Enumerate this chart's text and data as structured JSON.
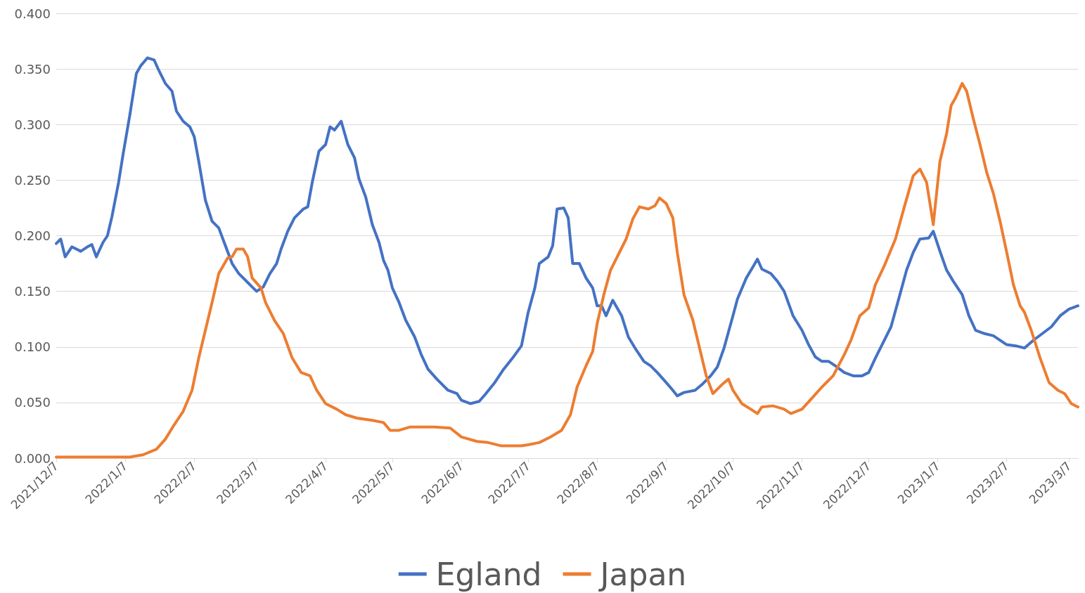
{
  "chart_data": {
    "type": "line",
    "xlim": [
      "2021-12-07",
      "2023-03-11"
    ],
    "ylim": [
      0,
      0.4
    ],
    "xticks": [
      {
        "value": "2021-12-07",
        "label": "2021/12/7"
      },
      {
        "value": "2022-01-07",
        "label": "2022/1/7"
      },
      {
        "value": "2022-02-07",
        "label": "2022/2/7"
      },
      {
        "value": "2022-03-07",
        "label": "2022/3/7"
      },
      {
        "value": "2022-04-07",
        "label": "2022/4/7"
      },
      {
        "value": "2022-05-07",
        "label": "2022/5/7"
      },
      {
        "value": "2022-06-07",
        "label": "2022/6/7"
      },
      {
        "value": "2022-07-07",
        "label": "2022/7/7"
      },
      {
        "value": "2022-08-07",
        "label": "2022/8/7"
      },
      {
        "value": "2022-09-07",
        "label": "2022/9/7"
      },
      {
        "value": "2022-10-07",
        "label": "2022/10/7"
      },
      {
        "value": "2022-11-07",
        "label": "2022/11/7"
      },
      {
        "value": "2022-12-07",
        "label": "2022/12/7"
      },
      {
        "value": "2023-01-07",
        "label": "2023/1/7"
      },
      {
        "value": "2023-02-07",
        "label": "2023/2/7"
      },
      {
        "value": "2023-03-07",
        "label": "2023/3/7"
      }
    ],
    "yticks": [
      {
        "value": 0,
        "label": "0.000"
      },
      {
        "value": 0.05,
        "label": "0.050"
      },
      {
        "value": 0.1,
        "label": "0.100"
      },
      {
        "value": 0.15,
        "label": "0.150"
      },
      {
        "value": 0.2,
        "label": "0.200"
      },
      {
        "value": 0.25,
        "label": "0.250"
      },
      {
        "value": 0.3,
        "label": "0.300"
      },
      {
        "value": 0.35,
        "label": "0.350"
      },
      {
        "value": 0.4,
        "label": "0.400"
      }
    ],
    "grid": "y",
    "legend": "bottom",
    "marker": "none",
    "line_style": "solid",
    "series": [
      {
        "name": "Egland",
        "color": "#4472c4",
        "x": [
          "2021-12-07",
          "2021-12-09",
          "2021-12-11",
          "2021-12-14",
          "2021-12-18",
          "2021-12-21",
          "2021-12-23",
          "2021-12-25",
          "2021-12-28",
          "2021-12-30",
          "2022-01-01",
          "2022-01-04",
          "2022-01-06",
          "2022-01-09",
          "2022-01-12",
          "2022-01-14",
          "2022-01-17",
          "2022-01-20",
          "2022-01-22",
          "2022-01-25",
          "2022-01-28",
          "2022-01-30",
          "2022-02-02",
          "2022-02-05",
          "2022-02-07",
          "2022-02-09",
          "2022-02-12",
          "2022-02-15",
          "2022-02-18",
          "2022-02-21",
          "2022-02-24",
          "2022-02-27",
          "2022-03-03",
          "2022-03-05",
          "2022-03-07",
          "2022-03-10",
          "2022-03-13",
          "2022-03-16",
          "2022-03-18",
          "2022-03-21",
          "2022-03-24",
          "2022-03-28",
          "2022-03-30",
          "2022-04-01",
          "2022-04-04",
          "2022-04-07",
          "2022-04-09",
          "2022-04-11",
          "2022-04-14",
          "2022-04-17",
          "2022-04-20",
          "2022-04-22",
          "2022-04-25",
          "2022-04-28",
          "2022-05-01",
          "2022-05-03",
          "2022-05-05",
          "2022-05-07",
          "2022-05-10",
          "2022-05-13",
          "2022-05-17",
          "2022-05-20",
          "2022-05-23",
          "2022-05-27",
          "2022-06-01",
          "2022-06-05",
          "2022-06-07",
          "2022-06-11",
          "2022-06-15",
          "2022-06-18",
          "2022-06-22",
          "2022-06-26",
          "2022-06-30",
          "2022-07-04",
          "2022-07-07",
          "2022-07-10",
          "2022-07-12",
          "2022-07-16",
          "2022-07-18",
          "2022-07-20",
          "2022-07-23",
          "2022-07-25",
          "2022-07-27",
          "2022-07-30",
          "2022-08-02",
          "2022-08-05",
          "2022-08-07",
          "2022-08-09",
          "2022-08-11",
          "2022-08-14",
          "2022-08-18",
          "2022-08-21",
          "2022-08-24",
          "2022-08-28",
          "2022-08-31",
          "2022-09-03",
          "2022-09-07",
          "2022-09-10",
          "2022-09-12",
          "2022-09-15",
          "2022-09-20",
          "2022-09-23",
          "2022-09-27",
          "2022-09-30",
          "2022-10-03",
          "2022-10-07",
          "2022-10-09",
          "2022-10-13",
          "2022-10-16",
          "2022-10-18",
          "2022-10-20",
          "2022-10-24",
          "2022-10-27",
          "2022-10-30",
          "2022-11-03",
          "2022-11-07",
          "2022-11-10",
          "2022-11-13",
          "2022-11-16",
          "2022-11-19",
          "2022-11-22",
          "2022-11-26",
          "2022-11-30",
          "2022-12-04",
          "2022-12-07",
          "2022-12-10",
          "2022-12-13",
          "2022-12-17",
          "2022-12-21",
          "2022-12-24",
          "2022-12-27",
          "2022-12-30",
          "2023-01-03",
          "2023-01-05",
          "2023-01-08",
          "2023-01-11",
          "2023-01-14",
          "2023-01-18",
          "2023-01-21",
          "2023-01-24",
          "2023-01-28",
          "2023-02-01",
          "2023-02-07",
          "2023-02-11",
          "2023-02-15",
          "2023-02-19",
          "2023-02-23",
          "2023-02-27",
          "2023-03-03",
          "2023-03-07",
          "2023-03-11"
        ],
        "values": [
          0.193,
          0.197,
          0.181,
          0.19,
          0.186,
          0.19,
          0.192,
          0.181,
          0.194,
          0.2,
          0.217,
          0.248,
          0.273,
          0.308,
          0.346,
          0.353,
          0.36,
          0.358,
          0.349,
          0.337,
          0.33,
          0.312,
          0.303,
          0.298,
          0.289,
          0.267,
          0.232,
          0.213,
          0.207,
          0.191,
          0.175,
          0.166,
          0.158,
          0.154,
          0.15,
          0.154,
          0.166,
          0.175,
          0.188,
          0.204,
          0.216,
          0.224,
          0.226,
          0.248,
          0.276,
          0.282,
          0.298,
          0.295,
          0.303,
          0.282,
          0.27,
          0.251,
          0.235,
          0.21,
          0.194,
          0.178,
          0.169,
          0.153,
          0.14,
          0.124,
          0.109,
          0.093,
          0.08,
          0.071,
          0.061,
          0.058,
          0.052,
          0.049,
          0.051,
          0.058,
          0.068,
          0.08,
          0.09,
          0.101,
          0.131,
          0.153,
          0.175,
          0.181,
          0.191,
          0.224,
          0.225,
          0.216,
          0.175,
          0.175,
          0.162,
          0.153,
          0.137,
          0.137,
          0.128,
          0.142,
          0.128,
          0.109,
          0.099,
          0.087,
          0.083,
          0.077,
          0.068,
          0.061,
          0.056,
          0.059,
          0.061,
          0.066,
          0.074,
          0.082,
          0.099,
          0.128,
          0.143,
          0.162,
          0.172,
          0.179,
          0.17,
          0.166,
          0.159,
          0.15,
          0.128,
          0.115,
          0.102,
          0.091,
          0.087,
          0.087,
          0.083,
          0.077,
          0.074,
          0.074,
          0.077,
          0.09,
          0.102,
          0.118,
          0.147,
          0.169,
          0.185,
          0.197,
          0.198,
          0.204,
          0.186,
          0.169,
          0.159,
          0.147,
          0.128,
          0.115,
          0.112,
          0.11,
          0.102,
          0.101,
          0.099,
          0.106,
          0.112,
          0.118,
          0.128,
          0.134,
          0.137
        ]
      },
      {
        "name": "Japan",
        "color": "#ed7d31",
        "x": [
          "2021-12-07",
          "2021-12-25",
          "2022-01-09",
          "2022-01-15",
          "2022-01-21",
          "2022-01-25",
          "2022-01-29",
          "2022-02-02",
          "2022-02-06",
          "2022-02-09",
          "2022-02-12",
          "2022-02-15",
          "2022-02-18",
          "2022-02-22",
          "2022-02-24",
          "2022-02-26",
          "2022-03-01",
          "2022-03-03",
          "2022-03-05",
          "2022-03-09",
          "2022-03-11",
          "2022-03-15",
          "2022-03-19",
          "2022-03-23",
          "2022-03-27",
          "2022-03-31",
          "2022-04-03",
          "2022-04-07",
          "2022-04-12",
          "2022-04-16",
          "2022-04-21",
          "2022-04-28",
          "2022-05-03",
          "2022-05-06",
          "2022-05-10",
          "2022-05-15",
          "2022-05-20",
          "2022-05-26",
          "2022-06-02",
          "2022-06-07",
          "2022-06-14",
          "2022-06-19",
          "2022-06-25",
          "2022-07-04",
          "2022-07-07",
          "2022-07-12",
          "2022-07-17",
          "2022-07-22",
          "2022-07-26",
          "2022-07-29",
          "2022-08-02",
          "2022-08-05",
          "2022-08-07",
          "2022-08-10",
          "2022-08-13",
          "2022-08-17",
          "2022-08-20",
          "2022-08-23",
          "2022-08-26",
          "2022-08-30",
          "2022-09-02",
          "2022-09-04",
          "2022-09-07",
          "2022-09-10",
          "2022-09-12",
          "2022-09-15",
          "2022-09-19",
          "2022-09-22",
          "2022-09-25",
          "2022-09-28",
          "2022-10-02",
          "2022-10-05",
          "2022-10-07",
          "2022-10-11",
          "2022-10-15",
          "2022-10-18",
          "2022-10-20",
          "2022-10-25",
          "2022-10-30",
          "2022-11-02",
          "2022-11-07",
          "2022-11-12",
          "2022-11-16",
          "2022-11-21",
          "2022-11-26",
          "2022-11-29",
          "2022-12-03",
          "2022-12-07",
          "2022-12-10",
          "2022-12-14",
          "2022-12-19",
          "2022-12-23",
          "2022-12-27",
          "2022-12-30",
          "2023-01-02",
          "2023-01-05",
          "2023-01-08",
          "2023-01-11",
          "2023-01-13",
          "2023-01-15",
          "2023-01-18",
          "2023-01-20",
          "2023-01-23",
          "2023-01-26",
          "2023-01-29",
          "2023-02-01",
          "2023-02-04",
          "2023-02-07",
          "2023-02-10",
          "2023-02-13",
          "2023-02-15",
          "2023-02-18",
          "2023-02-22",
          "2023-02-26",
          "2023-03-02",
          "2023-03-05",
          "2023-03-08",
          "2023-03-11"
        ],
        "values": [
          0.001,
          0.001,
          0.001,
          0.003,
          0.008,
          0.017,
          0.03,
          0.042,
          0.061,
          0.09,
          0.115,
          0.14,
          0.166,
          0.18,
          0.181,
          0.188,
          0.188,
          0.181,
          0.162,
          0.153,
          0.14,
          0.124,
          0.112,
          0.09,
          0.077,
          0.074,
          0.061,
          0.049,
          0.044,
          0.039,
          0.036,
          0.034,
          0.032,
          0.025,
          0.025,
          0.028,
          0.028,
          0.028,
          0.027,
          0.019,
          0.015,
          0.014,
          0.011,
          0.011,
          0.012,
          0.014,
          0.019,
          0.025,
          0.039,
          0.064,
          0.083,
          0.096,
          0.121,
          0.147,
          0.169,
          0.185,
          0.197,
          0.215,
          0.226,
          0.224,
          0.227,
          0.234,
          0.229,
          0.216,
          0.185,
          0.147,
          0.124,
          0.099,
          0.074,
          0.058,
          0.066,
          0.071,
          0.061,
          0.049,
          0.044,
          0.04,
          0.046,
          0.047,
          0.044,
          0.04,
          0.044,
          0.055,
          0.064,
          0.074,
          0.093,
          0.106,
          0.128,
          0.135,
          0.156,
          0.173,
          0.197,
          0.226,
          0.254,
          0.26,
          0.248,
          0.21,
          0.267,
          0.292,
          0.317,
          0.324,
          0.337,
          0.33,
          0.305,
          0.282,
          0.257,
          0.238,
          0.213,
          0.185,
          0.156,
          0.137,
          0.131,
          0.115,
          0.09,
          0.068,
          0.061,
          0.058,
          0.049,
          0.046
        ]
      }
    ]
  }
}
